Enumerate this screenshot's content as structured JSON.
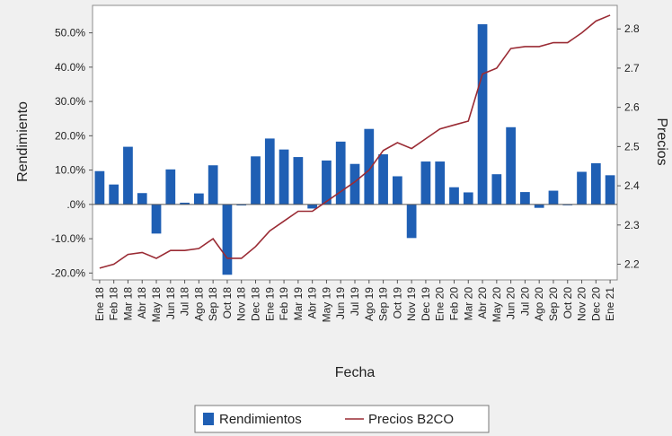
{
  "chart_data": {
    "type": "bar+line",
    "xlabel": "Fecha",
    "ylabel_left": "Rendimiento",
    "ylabel_right": "Precios",
    "categories": [
      "Ene 18",
      "Feb 18",
      "Mar 18",
      "Abr 18",
      "May 18",
      "Jun 18",
      "Jul 18",
      "Ago 18",
      "Sep 18",
      "Oct 18",
      "Nov 18",
      "Dec 18",
      "Ene 19",
      "Feb 19",
      "Mar 19",
      "Abr 19",
      "May 19",
      "Jun 19",
      "Jul 19",
      "Ago 19",
      "Sep 19",
      "Oct 19",
      "Nov 19",
      "Dec 19",
      "Ene 20",
      "Feb 20",
      "Mar 20",
      "Abr 20",
      "May 20",
      "Jun 20",
      "Jul 20",
      "Ago 20",
      "Sep 20",
      "Oct 20",
      "Nov 20",
      "Dec 20",
      "Ene 21"
    ],
    "left_axis": {
      "min": -0.22,
      "max": 0.58,
      "ticks": [
        -0.2,
        -0.1,
        0.0,
        0.1,
        0.2,
        0.3,
        0.4,
        0.5
      ],
      "tick_labels": [
        "-20.0%",
        "-10.0%",
        ".0%",
        "10.0%",
        "20.0%",
        "30.0%",
        "40.0%",
        "50.0%"
      ]
    },
    "right_axis": {
      "min": 2.16,
      "max": 2.86,
      "ticks": [
        2.2,
        2.3,
        2.4,
        2.5,
        2.6,
        2.7,
        2.8
      ],
      "tick_labels": [
        "2.2",
        "2.3",
        "2.4",
        "2.5",
        "2.6",
        "2.7",
        "2.8"
      ]
    },
    "series": [
      {
        "name": "Rendimientos",
        "kind": "bar",
        "axis": "left",
        "color": "#1f5fb4",
        "values": [
          0.097,
          0.058,
          0.168,
          0.033,
          -0.085,
          0.102,
          0.005,
          0.032,
          0.114,
          -0.205,
          -0.003,
          0.14,
          0.192,
          0.16,
          0.138,
          -0.012,
          0.128,
          0.183,
          0.118,
          0.22,
          0.146,
          0.082,
          -0.098,
          0.125,
          0.125,
          0.05,
          0.035,
          0.525,
          0.088,
          0.225,
          0.036,
          -0.01,
          0.04,
          0.0,
          0.095,
          0.12,
          0.085
        ]
      },
      {
        "name": "Precios B2CO",
        "kind": "line",
        "axis": "right",
        "color": "#9a2b34",
        "values": [
          2.19,
          2.2,
          2.225,
          2.23,
          2.215,
          2.235,
          2.235,
          2.24,
          2.265,
          2.215,
          2.215,
          2.245,
          2.285,
          2.31,
          2.335,
          2.335,
          2.36,
          2.385,
          2.41,
          2.44,
          2.49,
          2.51,
          2.495,
          2.52,
          2.545,
          2.555,
          2.565,
          2.685,
          2.7,
          2.75,
          2.755,
          2.755,
          2.765,
          2.765,
          2.79,
          2.82,
          2.835
        ]
      }
    ],
    "legend": {
      "position": "bottom"
    }
  }
}
